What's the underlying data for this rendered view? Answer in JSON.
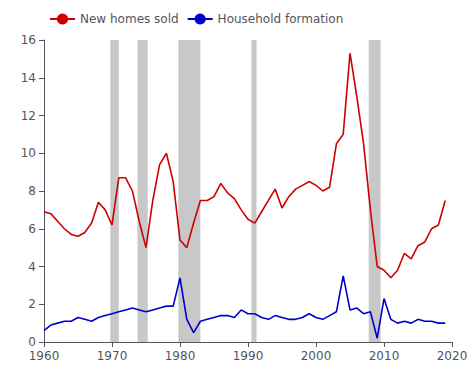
{
  "chart_data": {
    "type": "line",
    "title": "",
    "x": [
      1960,
      1961,
      1962,
      1963,
      1964,
      1965,
      1966,
      1967,
      1968,
      1969,
      1970,
      1971,
      1972,
      1973,
      1974,
      1975,
      1976,
      1977,
      1978,
      1979,
      1980,
      1981,
      1982,
      1983,
      1984,
      1985,
      1986,
      1987,
      1988,
      1989,
      1990,
      1991,
      1992,
      1993,
      1994,
      1995,
      1996,
      1997,
      1998,
      1999,
      2000,
      2001,
      2002,
      2003,
      2004,
      2005,
      2006,
      2007,
      2008,
      2009,
      2010,
      2011,
      2012,
      2013,
      2014,
      2015,
      2016,
      2017,
      2018,
      2019
    ],
    "series": [
      {
        "name": "New homes sold",
        "color": "#cc0000",
        "values": [
          6.9,
          6.8,
          6.4,
          6.0,
          5.7,
          5.6,
          5.8,
          6.3,
          7.4,
          7.0,
          6.2,
          8.7,
          8.7,
          8.0,
          6.4,
          5.0,
          7.5,
          9.4,
          10.0,
          8.5,
          5.4,
          5.0,
          6.3,
          7.5,
          7.5,
          7.7,
          8.4,
          7.9,
          7.6,
          7.0,
          6.5,
          6.3,
          6.9,
          7.5,
          8.1,
          7.1,
          7.7,
          8.1,
          8.3,
          8.5,
          8.3,
          8.0,
          8.2,
          10.5,
          11.0,
          15.3,
          13.0,
          10.5,
          7.0,
          4.0,
          3.8,
          3.4,
          3.8,
          4.7,
          4.4,
          5.1,
          5.3,
          6.0,
          6.2,
          7.5
        ]
      },
      {
        "name": "Household formation",
        "color": "#0000cc",
        "values": [
          0.6,
          0.9,
          1.0,
          1.1,
          1.1,
          1.3,
          1.2,
          1.1,
          1.3,
          1.4,
          1.5,
          1.6,
          1.7,
          1.8,
          1.7,
          1.6,
          1.7,
          1.8,
          1.9,
          1.9,
          3.4,
          1.2,
          0.5,
          1.1,
          1.2,
          1.3,
          1.4,
          1.4,
          1.3,
          1.7,
          1.5,
          1.5,
          1.3,
          1.2,
          1.4,
          1.3,
          1.2,
          1.2,
          1.3,
          1.5,
          1.3,
          1.2,
          1.4,
          1.6,
          3.5,
          1.7,
          1.8,
          1.5,
          1.6,
          0.2,
          2.3,
          1.2,
          1.0,
          1.1,
          1.0,
          1.2,
          1.1,
          1.1,
          1.0,
          1.0
        ]
      }
    ],
    "recession_bands": {
      "color": "#c8c8c8",
      "ranges": [
        [
          1969.75,
          1971.0
        ],
        [
          1973.75,
          1975.25
        ],
        [
          1979.75,
          1983.0
        ],
        [
          1990.5,
          1991.25
        ],
        [
          2007.75,
          2009.5
        ]
      ]
    },
    "xlim": [
      1960,
      2020
    ],
    "xticks": [
      1960,
      1970,
      1980,
      1990,
      2000,
      2010,
      2020
    ],
    "ylim": [
      0,
      16
    ],
    "yticks": [
      0,
      2,
      4,
      6,
      8,
      10,
      12,
      14,
      16
    ],
    "grid": false,
    "legend": "upper left"
  }
}
